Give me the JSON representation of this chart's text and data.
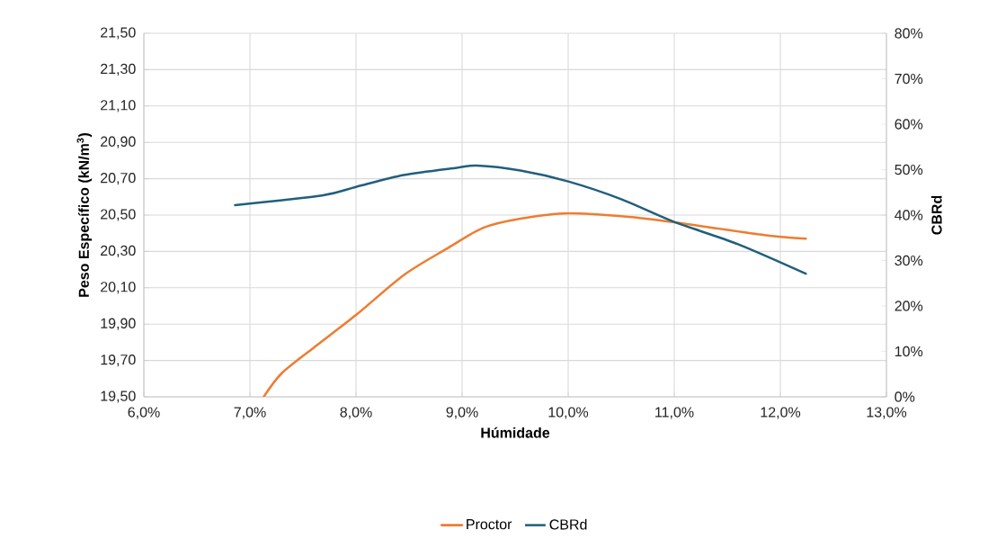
{
  "chart_data": {
    "type": "line",
    "xlabel": "Húmidade",
    "ylabel": "Peso Específico (kN/m$^{3}$)",
    "y2label": "CBRd",
    "xlim": [
      6,
      13
    ],
    "xticks": [
      {
        "value": 6,
        "label": "6,0%"
      },
      {
        "value": 7,
        "label": "7,0%"
      },
      {
        "value": 8,
        "label": "8,0%"
      },
      {
        "value": 9,
        "label": "9,0%"
      },
      {
        "value": 10,
        "label": "10,0%"
      },
      {
        "value": 11,
        "label": "11,0%"
      },
      {
        "value": 12,
        "label": "12,0%"
      },
      {
        "value": 13,
        "label": "13,0%"
      }
    ],
    "ylim": [
      19.5,
      21.5
    ],
    "yticks": [
      {
        "value": 19.5,
        "label": "19,50"
      },
      {
        "value": 19.7,
        "label": "19,70"
      },
      {
        "value": 19.9,
        "label": "19,90"
      },
      {
        "value": 20.1,
        "label": "20,10"
      },
      {
        "value": 20.3,
        "label": "20,30"
      },
      {
        "value": 20.5,
        "label": "20,50"
      },
      {
        "value": 20.7,
        "label": "20,70"
      },
      {
        "value": 20.9,
        "label": "20,90"
      },
      {
        "value": 21.1,
        "label": "21,10"
      },
      {
        "value": 21.3,
        "label": "21,30"
      },
      {
        "value": 21.5,
        "label": "21,50"
      }
    ],
    "y2lim": [
      0,
      80
    ],
    "y2ticks": [
      {
        "value": 0,
        "label": "0%"
      },
      {
        "value": 10,
        "label": "10%"
      },
      {
        "value": 20,
        "label": "20%"
      },
      {
        "value": 30,
        "label": "30%"
      },
      {
        "value": 40,
        "label": "40%"
      },
      {
        "value": 50,
        "label": "50%"
      },
      {
        "value": 60,
        "label": "60%"
      },
      {
        "value": 70,
        "label": "70%"
      },
      {
        "value": 80,
        "label": "80%"
      }
    ],
    "grid": true,
    "legend": "bottom",
    "series": [
      {
        "name": "Proctor",
        "color": "#ed7d31",
        "x": [
          7.13,
          7.3,
          7.6,
          8.0,
          8.45,
          8.87,
          9.2,
          9.55,
          10.0,
          10.57,
          11.0,
          11.85,
          12.24
        ],
        "values": [
          19.5,
          19.63,
          19.77,
          19.95,
          20.17,
          20.32,
          20.43,
          20.48,
          20.51,
          20.49,
          20.46,
          20.39,
          20.37
        ]
      },
      {
        "name": "CBRd",
        "color": "#215f7d",
        "axis": "y2",
        "x": [
          6.86,
          7.68,
          8.0,
          8.45,
          8.95,
          9.14,
          9.55,
          10.0,
          10.5,
          11.0,
          11.6,
          12.24
        ],
        "values": [
          42.2,
          44.3,
          46.2,
          48.8,
          50.4,
          50.9,
          49.8,
          47.4,
          43.5,
          38.5,
          33.6,
          27.1
        ]
      }
    ]
  }
}
